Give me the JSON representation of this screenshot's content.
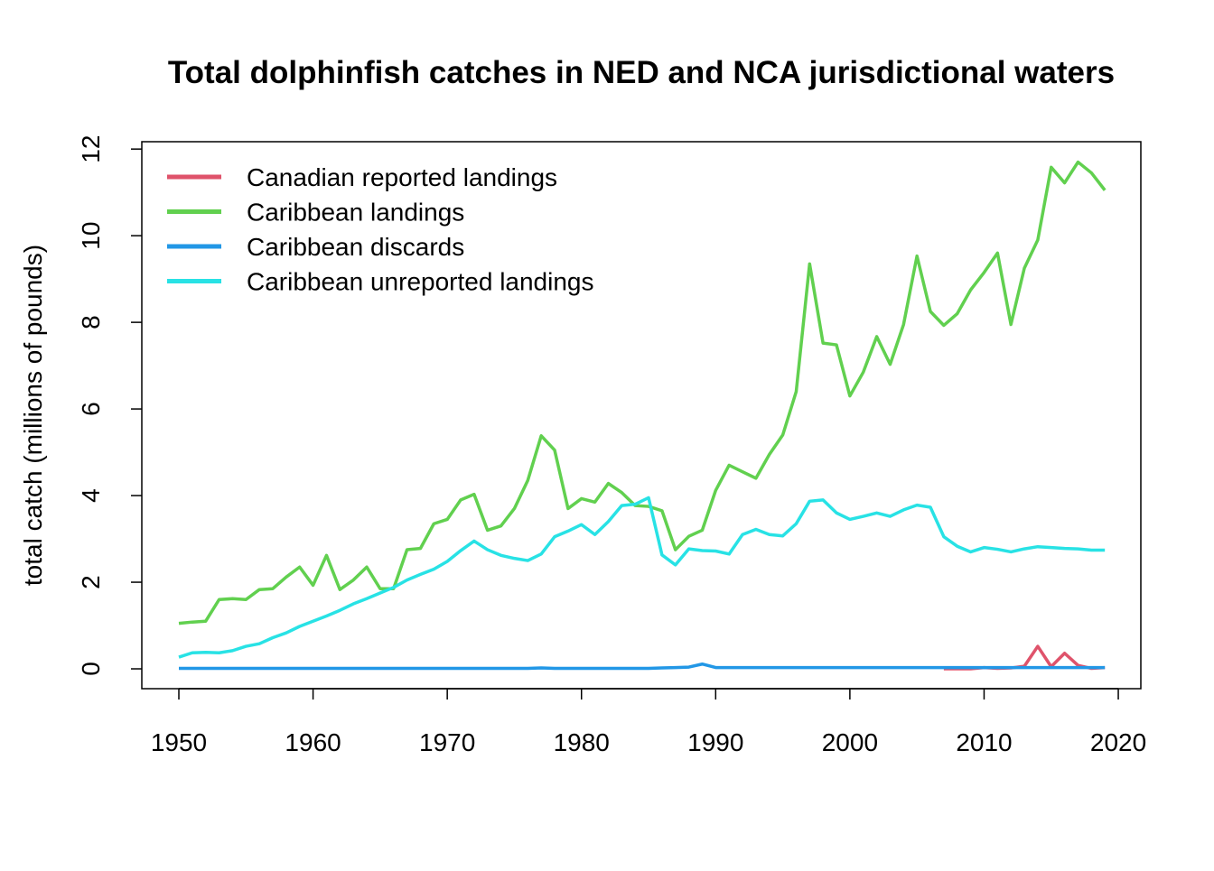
{
  "chart_data": {
    "type": "line",
    "title": "Total dolphinfish catches in NED and NCA jurisdictional waters",
    "y_label": "total catch (millions of pounds)",
    "x": [
      1950,
      1951,
      1952,
      1953,
      1954,
      1955,
      1956,
      1957,
      1958,
      1959,
      1960,
      1961,
      1962,
      1963,
      1964,
      1965,
      1966,
      1967,
      1968,
      1969,
      1970,
      1971,
      1972,
      1973,
      1974,
      1975,
      1976,
      1977,
      1978,
      1979,
      1980,
      1981,
      1982,
      1983,
      1984,
      1985,
      1986,
      1987,
      1988,
      1989,
      1990,
      1991,
      1992,
      1993,
      1994,
      1995,
      1996,
      1997,
      1998,
      1999,
      2000,
      2001,
      2002,
      2003,
      2004,
      2005,
      2006,
      2007,
      2008,
      2009,
      2010,
      2011,
      2012,
      2013,
      2014,
      2015,
      2016,
      2017,
      2018,
      2019
    ],
    "series": [
      {
        "name": "Canadian reported landings",
        "color": "#DF536B",
        "values": [
          null,
          null,
          null,
          null,
          null,
          null,
          null,
          null,
          null,
          null,
          null,
          null,
          null,
          null,
          null,
          null,
          null,
          null,
          null,
          null,
          null,
          null,
          null,
          null,
          null,
          null,
          null,
          null,
          null,
          null,
          null,
          null,
          null,
          null,
          null,
          null,
          null,
          null,
          null,
          null,
          null,
          null,
          null,
          null,
          null,
          null,
          null,
          null,
          null,
          null,
          null,
          null,
          null,
          null,
          null,
          null,
          null,
          0,
          0,
          0,
          0.03,
          0.01,
          0.02,
          0.06,
          0.52,
          0.05,
          0.36,
          0.08,
          0.01,
          0.03
        ]
      },
      {
        "name": "Caribbean landings",
        "color": "#61D04F",
        "values": [
          1.05,
          1.08,
          1.1,
          1.6,
          1.62,
          1.6,
          1.83,
          1.85,
          2.12,
          2.35,
          1.93,
          2.62,
          1.83,
          2.05,
          2.35,
          1.85,
          1.85,
          2.75,
          2.78,
          3.35,
          3.45,
          3.9,
          4.03,
          3.2,
          3.3,
          3.7,
          4.35,
          5.38,
          5.05,
          3.7,
          3.93,
          3.85,
          4.28,
          4.07,
          3.77,
          3.75,
          3.65,
          2.75,
          3.06,
          3.2,
          4.12,
          4.7,
          4.55,
          4.4,
          4.95,
          5.4,
          6.4,
          9.35,
          7.52,
          7.48,
          6.3,
          6.85,
          7.67,
          7.03,
          7.95,
          9.53,
          8.25,
          7.93,
          8.2,
          8.75,
          9.15,
          9.6,
          7.95,
          9.25,
          9.9,
          11.58,
          11.22,
          11.7,
          11.45,
          11.05
        ]
      },
      {
        "name": "Caribbean discards",
        "color": "#2297E6",
        "values": [
          0.01,
          0.01,
          0.01,
          0.01,
          0.01,
          0.01,
          0.01,
          0.01,
          0.01,
          0.01,
          0.01,
          0.01,
          0.01,
          0.01,
          0.01,
          0.01,
          0.01,
          0.01,
          0.01,
          0.01,
          0.01,
          0.01,
          0.01,
          0.01,
          0.01,
          0.01,
          0.01,
          0.02,
          0.01,
          0.01,
          0.01,
          0.01,
          0.01,
          0.01,
          0.01,
          0.01,
          0.02,
          0.03,
          0.04,
          0.11,
          0.03,
          0.03,
          0.03,
          0.03,
          0.03,
          0.03,
          0.03,
          0.03,
          0.03,
          0.03,
          0.03,
          0.03,
          0.03,
          0.03,
          0.03,
          0.03,
          0.03,
          0.03,
          0.03,
          0.03,
          0.03,
          0.03,
          0.03,
          0.03,
          0.03,
          0.03,
          0.03,
          0.03,
          0.03,
          0.03
        ]
      },
      {
        "name": "Caribbean unreported landings",
        "color": "#28E2E5",
        "values": [
          0.27,
          0.37,
          0.38,
          0.37,
          0.42,
          0.52,
          0.58,
          0.72,
          0.83,
          0.98,
          1.1,
          1.22,
          1.35,
          1.5,
          1.62,
          1.75,
          1.88,
          2.05,
          2.18,
          2.3,
          2.48,
          2.73,
          2.95,
          2.75,
          2.62,
          2.55,
          2.5,
          2.65,
          3.05,
          3.18,
          3.33,
          3.1,
          3.4,
          3.77,
          3.8,
          3.95,
          2.63,
          2.4,
          2.77,
          2.73,
          2.72,
          2.65,
          3.1,
          3.22,
          3.1,
          3.07,
          3.35,
          3.87,
          3.9,
          3.6,
          3.45,
          3.52,
          3.6,
          3.52,
          3.67,
          3.78,
          3.73,
          3.05,
          2.83,
          2.7,
          2.8,
          2.76,
          2.7,
          2.77,
          2.82,
          2.8,
          2.78,
          2.77,
          2.74,
          2.74
        ]
      }
    ],
    "xlim": [
      1947.24,
      2021.68
    ],
    "ylim": [
      -0.458,
      12.17
    ],
    "xticks": [
      1950,
      1960,
      1970,
      1980,
      1990,
      2000,
      2010,
      2020
    ],
    "yticks": [
      0,
      2,
      4,
      6,
      8,
      10,
      12
    ],
    "legend": "top-left"
  }
}
